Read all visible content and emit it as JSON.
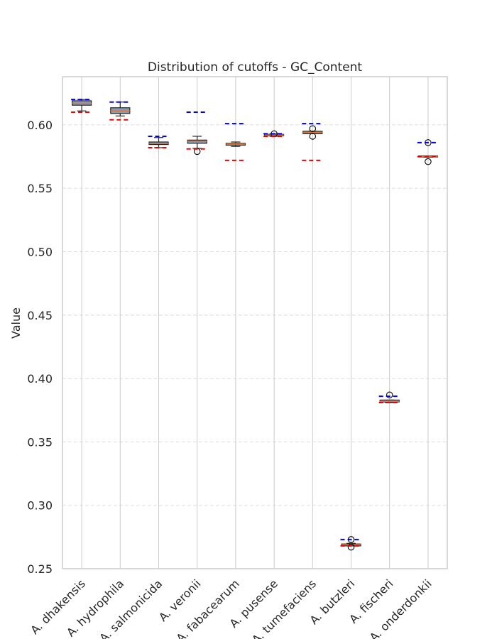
{
  "chart_data": {
    "type": "box",
    "title": "Distribution of cutoffs - GC_Content",
    "xlabel": "",
    "ylabel": "Value",
    "ylim": [
      0.25,
      0.638
    ],
    "yticks": [
      "0.25",
      "0.30",
      "0.35",
      "0.40",
      "0.45",
      "0.50",
      "0.55",
      "0.60"
    ],
    "grid": true,
    "categories": [
      "A. dhakensis",
      "A. hydrophila",
      "A. salmonicida",
      "A. veronii",
      "A. fabacearum",
      "A. pusense",
      "A. tumefaciens",
      "A. butzleri",
      "A. fischeri",
      "A. onderdonkii"
    ],
    "boxes": [
      {
        "whisker_low": 0.611,
        "q1": 0.6155,
        "median": 0.617,
        "q3": 0.619,
        "whisker_high": 0.62,
        "outliers": []
      },
      {
        "whisker_low": 0.607,
        "q1": 0.609,
        "median": 0.611,
        "q3": 0.6135,
        "whisker_high": 0.618,
        "outliers": []
      },
      {
        "whisker_low": 0.582,
        "q1": 0.5845,
        "median": 0.5855,
        "q3": 0.5865,
        "whisker_high": 0.59,
        "outliers": []
      },
      {
        "whisker_low": 0.5815,
        "q1": 0.5855,
        "median": 0.587,
        "q3": 0.588,
        "whisker_high": 0.591,
        "outliers": [
          0.579
        ]
      },
      {
        "whisker_low": 0.583,
        "q1": 0.584,
        "median": 0.585,
        "q3": 0.5855,
        "whisker_high": 0.5865,
        "outliers": []
      },
      {
        "whisker_low": 0.591,
        "q1": 0.5915,
        "median": 0.592,
        "q3": 0.5925,
        "whisker_high": 0.593,
        "outliers": [
          0.593
        ]
      },
      {
        "whisker_low": 0.593,
        "q1": 0.593,
        "median": 0.594,
        "q3": 0.595,
        "whisker_high": 0.595,
        "outliers": [
          0.597,
          0.591
        ]
      },
      {
        "whisker_low": 0.268,
        "q1": 0.268,
        "median": 0.269,
        "q3": 0.2695,
        "whisker_high": 0.27,
        "outliers": [
          0.273,
          0.267
        ]
      },
      {
        "whisker_low": 0.381,
        "q1": 0.3815,
        "median": 0.382,
        "q3": 0.383,
        "whisker_high": 0.383,
        "outliers": [
          0.387
        ]
      },
      {
        "whisker_low": 0.5745,
        "q1": 0.575,
        "median": 0.575,
        "q3": 0.5755,
        "whisker_high": 0.5755,
        "outliers": [
          0.586,
          0.571
        ]
      }
    ],
    "upper_cutoffs": [
      0.62,
      0.618,
      0.591,
      0.61,
      0.601,
      0.593,
      0.601,
      0.273,
      0.386,
      0.586
    ],
    "lower_cutoffs": [
      0.61,
      0.604,
      0.582,
      0.581,
      0.572,
      0.591,
      0.572,
      0.268,
      0.381,
      0.575
    ],
    "colors": {
      "box_fill": "#8a9bb8",
      "box_edge": "#262626",
      "median": "#d9763a",
      "upper_cutoff": "#0000ee",
      "lower_cutoff": "#ee0000",
      "grid": "#dddddd",
      "vertical_grid": "#cccccc",
      "frame": "#cccccc"
    }
  }
}
